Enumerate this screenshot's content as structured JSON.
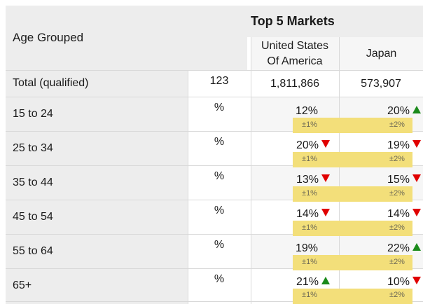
{
  "header": {
    "age_title": "Age Grouped",
    "markets_title": "Top 5 Markets",
    "col1_line1": "United States",
    "col1_line2": "Of America",
    "col2": "Japan"
  },
  "total": {
    "label": "Total (qualified)",
    "base": "123",
    "col1": "1,811,866",
    "col2": "573,907"
  },
  "rows": [
    {
      "label": "15 to 24",
      "unit": "%",
      "c1": "12%",
      "c1_trend": "",
      "c1_moe": "±1%",
      "c2": "20%",
      "c2_trend": "up",
      "c2_moe": "±2%"
    },
    {
      "label": "25 to 34",
      "unit": "%",
      "c1": "20%",
      "c1_trend": "down",
      "c1_moe": "±1%",
      "c2": "19%",
      "c2_trend": "down",
      "c2_moe": "±2%"
    },
    {
      "label": "35 to 44",
      "unit": "%",
      "c1": "13%",
      "c1_trend": "down",
      "c1_moe": "±1%",
      "c2": "15%",
      "c2_trend": "down",
      "c2_moe": "±2%"
    },
    {
      "label": "45 to 54",
      "unit": "%",
      "c1": "14%",
      "c1_trend": "down",
      "c1_moe": "±1%",
      "c2": "14%",
      "c2_trend": "down",
      "c2_moe": "±2%"
    },
    {
      "label": "55 to 64",
      "unit": "%",
      "c1": "19%",
      "c1_trend": "",
      "c1_moe": "±1%",
      "c2": "22%",
      "c2_trend": "up",
      "c2_moe": "±2%"
    },
    {
      "label": "65+",
      "unit": "%",
      "c1": "21%",
      "c1_trend": "up",
      "c1_moe": "±1%",
      "c2": "10%",
      "c2_trend": "down",
      "c2_moe": "±2%"
    }
  ],
  "colors": {
    "band": "#f3df7a",
    "up": "#1a8a1a",
    "down": "#e00000",
    "header_bg": "#ededed"
  }
}
